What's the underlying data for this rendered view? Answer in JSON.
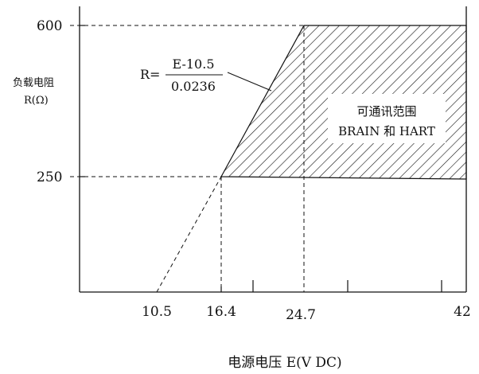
{
  "chart_data": {
    "type": "area",
    "title": "",
    "xlabel": "电源电压 E(V DC)",
    "ylabel_line1": "负载电阻",
    "ylabel_line2": "R(Ω)",
    "x_ticks": [
      "10.5",
      "16.4",
      "24.7",
      "42"
    ],
    "x_tick_values": [
      10.5,
      16.4,
      24.7,
      42
    ],
    "y_ticks": [
      "600",
      "250"
    ],
    "y_tick_values": [
      600,
      250
    ],
    "equation": {
      "lhs": "R=",
      "numerator": "E-10.5",
      "denominator": "0.0236"
    },
    "load_line": {
      "x": [
        10.5,
        16.4,
        24.7
      ],
      "y": [
        0,
        250,
        600
      ]
    },
    "region": {
      "label_line1": "可通讯范围",
      "label_line2": "BRAIN 和 HART",
      "polygon": [
        [
          16.4,
          250
        ],
        [
          24.7,
          600
        ],
        [
          42,
          600
        ],
        [
          42,
          250
        ]
      ]
    },
    "grid": false
  }
}
